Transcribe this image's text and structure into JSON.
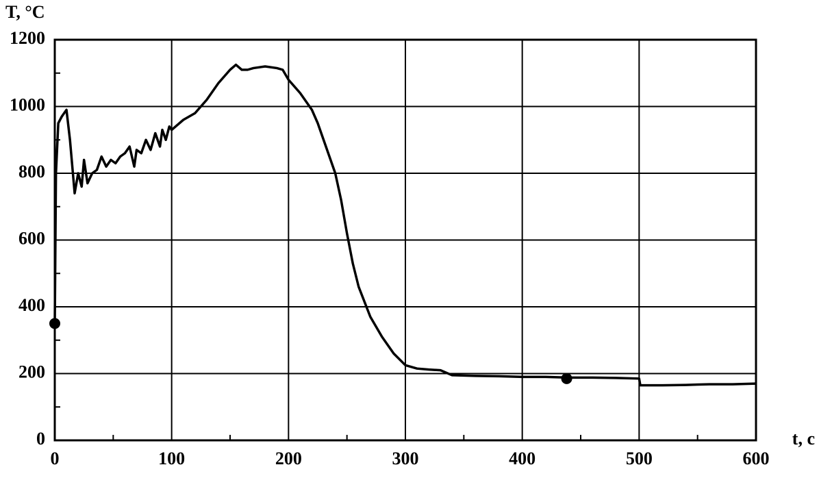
{
  "chart_data": {
    "type": "line",
    "ylabel": "T, °C",
    "xlabel": "t, c",
    "xlim": [
      0,
      600
    ],
    "ylim": [
      0,
      1200
    ],
    "xticks": [
      0,
      100,
      200,
      300,
      400,
      500,
      600
    ],
    "yticks": [
      0,
      200,
      400,
      600,
      800,
      1000,
      1200
    ],
    "xminorticks": [
      50,
      150,
      250,
      350,
      450,
      550
    ],
    "yminorticks": [
      100,
      300,
      500,
      700,
      900,
      1100
    ],
    "grid": true,
    "x": [
      0,
      1,
      3,
      6,
      10,
      13,
      17,
      20,
      23,
      25,
      28,
      32,
      36,
      40,
      44,
      48,
      52,
      56,
      60,
      64,
      68,
      70,
      74,
      78,
      82,
      86,
      90,
      92,
      95,
      98,
      100,
      110,
      120,
      130,
      140,
      150,
      155,
      160,
      165,
      170,
      180,
      190,
      195,
      200,
      210,
      220,
      225,
      230,
      240,
      245,
      250,
      255,
      260,
      270,
      280,
      290,
      300,
      310,
      320,
      330,
      340,
      360,
      380,
      400,
      420,
      440,
      460,
      480,
      500,
      501,
      520,
      540,
      560,
      580,
      600
    ],
    "series": [
      {
        "color": "#000000",
        "values": [
          350,
          800,
          950,
          970,
          990,
          900,
          740,
          800,
          760,
          840,
          770,
          800,
          810,
          850,
          820,
          840,
          830,
          850,
          860,
          880,
          820,
          870,
          860,
          900,
          870,
          920,
          880,
          930,
          900,
          940,
          930,
          960,
          980,
          1020,
          1070,
          1110,
          1125,
          1110,
          1110,
          1115,
          1120,
          1115,
          1110,
          1080,
          1040,
          990,
          950,
          900,
          800,
          720,
          620,
          530,
          460,
          370,
          310,
          260,
          225,
          215,
          212,
          210,
          195,
          193,
          192,
          190,
          190,
          188,
          188,
          187,
          185,
          165,
          165,
          166,
          168,
          168,
          170
        ]
      }
    ],
    "markers": {
      "color": "#000000",
      "x": [
        0,
        438
      ],
      "values": [
        350,
        185
      ]
    }
  }
}
